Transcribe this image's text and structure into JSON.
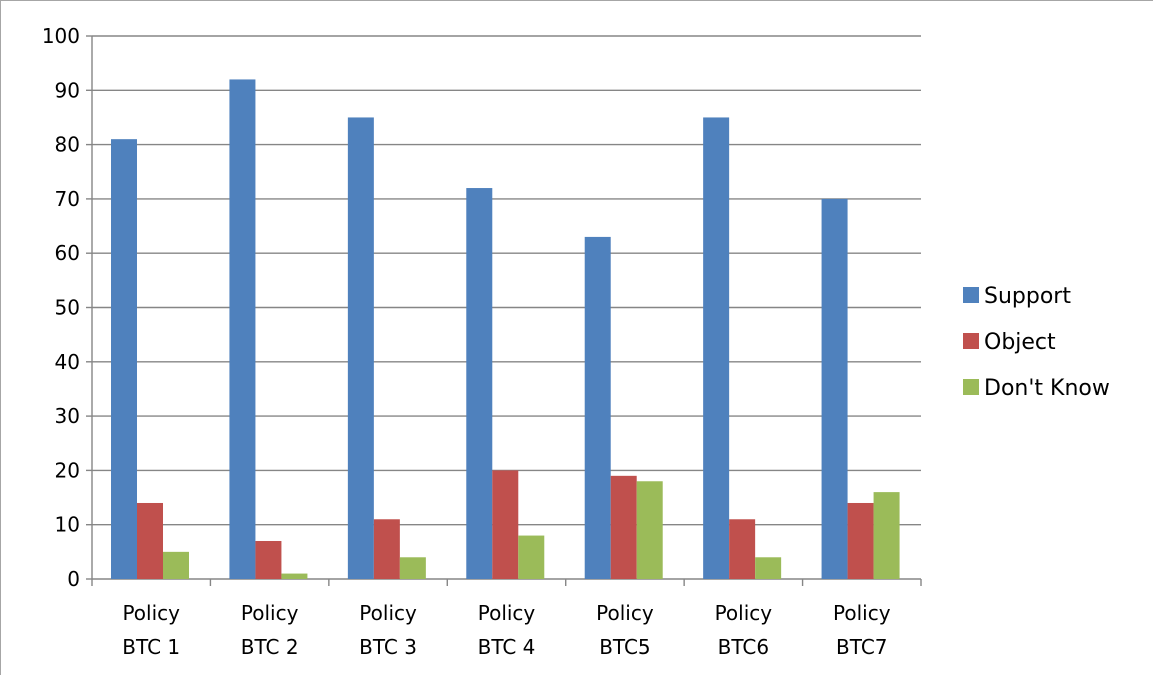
{
  "chart_data": {
    "type": "bar",
    "title": "",
    "xlabel": "",
    "ylabel": "",
    "ylim": [
      0,
      100
    ],
    "ytick_step": 10,
    "grid": true,
    "legend_position": "right",
    "categories": [
      [
        "Policy",
        "BTC 1"
      ],
      [
        "Policy",
        "BTC 2"
      ],
      [
        "Policy",
        "BTC 3"
      ],
      [
        "Policy",
        "BTC 4"
      ],
      [
        "Policy",
        "BTC5"
      ],
      [
        "Policy",
        "BTC6"
      ],
      [
        "Policy",
        "BTC7"
      ]
    ],
    "series": [
      {
        "name": "Support",
        "color": "#4f81bd",
        "values": [
          81,
          92,
          85,
          72,
          63,
          85,
          70
        ]
      },
      {
        "name": "Object",
        "color": "#c0504d",
        "values": [
          14,
          7,
          11,
          20,
          19,
          11,
          14
        ]
      },
      {
        "name": "Don't Know",
        "color": "#9bbb59",
        "values": [
          5,
          1,
          4,
          8,
          18,
          4,
          16
        ]
      }
    ]
  }
}
